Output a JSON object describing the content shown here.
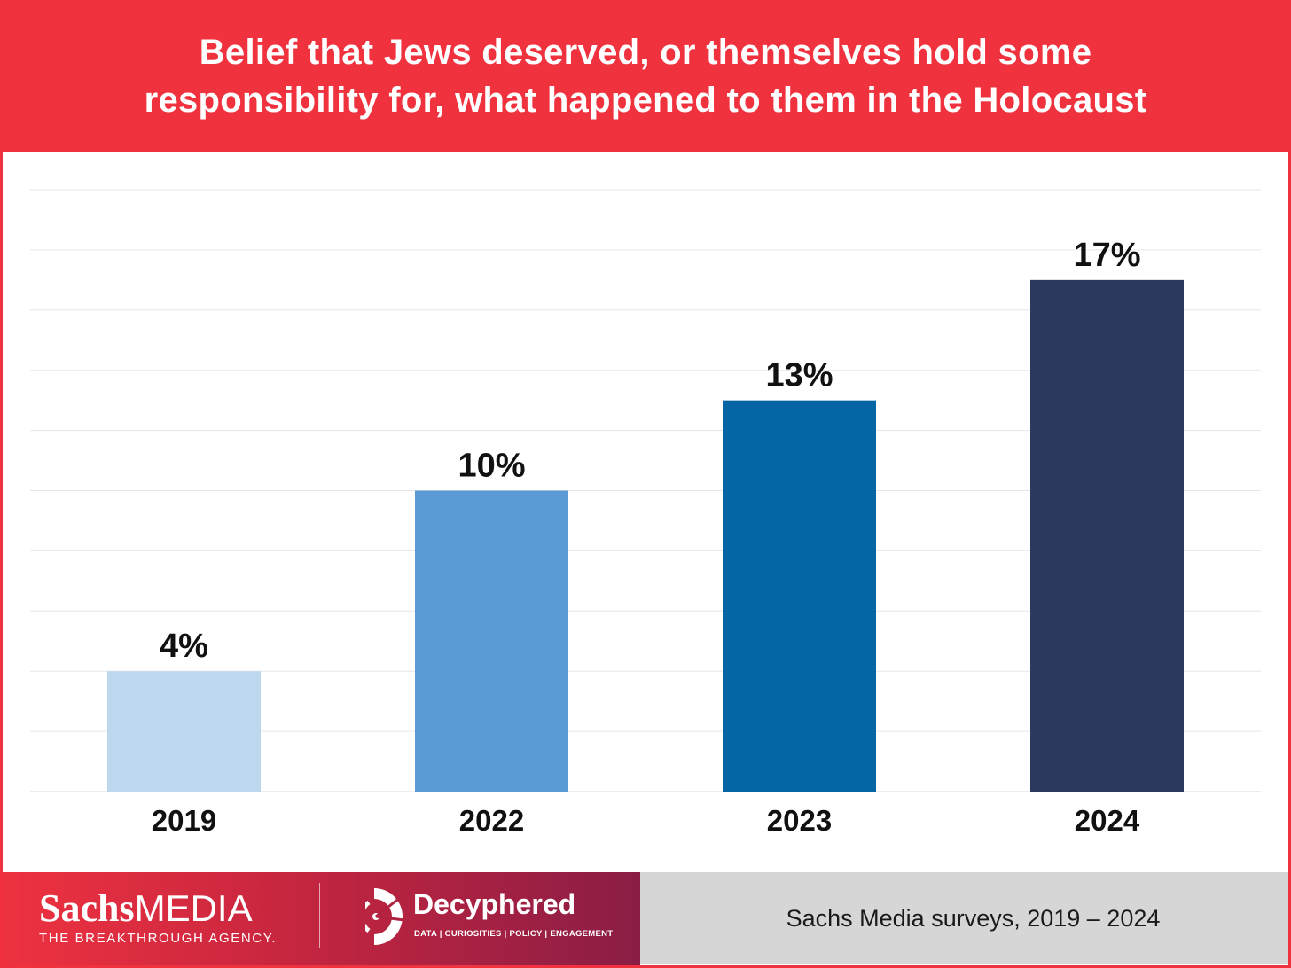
{
  "title": {
    "line1": "Belief that Jews deserved, or themselves hold some",
    "line2": "responsibility for, what happened to them in the Holocaust"
  },
  "chart_data": {
    "type": "bar",
    "categories": [
      "2019",
      "2022",
      "2023",
      "2024"
    ],
    "values": [
      4,
      10,
      13,
      17
    ],
    "value_labels": [
      "4%",
      "10%",
      "13%",
      "17%"
    ],
    "colors": [
      "#bdd7ee",
      "#5b9bd5",
      "#0666a5",
      "#2b3a5c"
    ],
    "ylim": [
      0,
      20
    ],
    "grid": true,
    "xlabel": "",
    "ylabel": ""
  },
  "footer": {
    "sachs_brand_bold": "Sachs",
    "sachs_brand_light": "MEDIA",
    "sachs_tagline": "THE BREAKTHROUGH AGENCY.",
    "decyphered_brand": "Decyphered",
    "decyphered_tagline": "DATA | CURIOSITIES | POLICY | ENGAGEMENT",
    "source": "Sachs Media surveys, 2019 – 2024"
  },
  "colors": {
    "accent": "#f0323f",
    "footer_gray": "#d6d6d6",
    "gridline": "#e6e6e6"
  }
}
